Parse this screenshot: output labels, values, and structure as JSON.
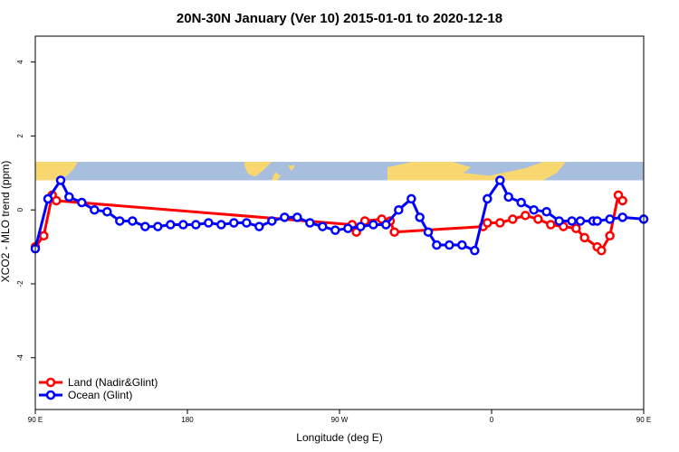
{
  "chart_data": {
    "type": "line",
    "title": "20N-30N January (Ver 10)   2015-01-01 to 2020-12-18",
    "xlabel": "Longitude (deg E)",
    "ylabel": "XCO2 - MLO trend (ppm)",
    "xlim": [
      90,
      450
    ],
    "ylim": [
      -5.4,
      4.7
    ],
    "x_ticks": [
      {
        "value": 90,
        "label": "90 E"
      },
      {
        "value": 180,
        "label": "180"
      },
      {
        "value": 270,
        "label": "90 W"
      },
      {
        "value": 360,
        "label": "0"
      },
      {
        "value": 450,
        "label": "90 E"
      },
      {
        "value": 540,
        "label": "180"
      }
    ],
    "y_ticks": [
      {
        "value": 4,
        "label": "4"
      },
      {
        "value": 2,
        "label": "2"
      },
      {
        "value": 0,
        "label": "0"
      },
      {
        "value": -2,
        "label": "-2"
      },
      {
        "value": -4,
        "label": "-4"
      }
    ],
    "map_band": {
      "y_range": [
        0.8,
        1.3
      ],
      "ocean_color": "#a8bedf",
      "land_color": "#f8d771"
    },
    "legend_position": "bottom-left",
    "series": [
      {
        "name": "Land (Nadir&Glint)",
        "color": "#ff0000",
        "points": [
          [
            90,
            -1.0
          ],
          [
            95,
            -0.7
          ],
          [
            100,
            0.4
          ],
          [
            102.5,
            0.25
          ],
          [
            277.5,
            -0.4
          ],
          [
            280,
            -0.6
          ],
          [
            285,
            -0.3
          ],
          [
            295,
            -0.25
          ],
          [
            300,
            -0.3
          ],
          [
            302.5,
            -0.6
          ],
          [
            355,
            -0.45
          ],
          [
            357.5,
            -0.35
          ],
          [
            365,
            -0.35
          ],
          [
            372.5,
            -0.25
          ],
          [
            380,
            -0.15
          ],
          [
            387.5,
            -0.25
          ],
          [
            395,
            -0.4
          ],
          [
            402.5,
            -0.45
          ],
          [
            410,
            -0.5
          ],
          [
            415,
            -0.75
          ],
          [
            422.5,
            -1.0
          ],
          [
            425,
            -1.1
          ],
          [
            430,
            -0.7
          ],
          [
            435,
            0.4
          ],
          [
            437.5,
            0.25
          ]
        ]
      },
      {
        "name": "Ocean (Glint)",
        "color": "#0000ff",
        "points": [
          [
            90,
            -1.05
          ],
          [
            97.5,
            0.3
          ],
          [
            105,
            0.8
          ],
          [
            110,
            0.35
          ],
          [
            117.5,
            0.2
          ],
          [
            125,
            0.0
          ],
          [
            132.5,
            -0.05
          ],
          [
            140,
            -0.3
          ],
          [
            147.5,
            -0.3
          ],
          [
            155,
            -0.45
          ],
          [
            162.5,
            -0.45
          ],
          [
            170,
            -0.4
          ],
          [
            177.5,
            -0.4
          ],
          [
            185,
            -0.4
          ],
          [
            192.5,
            -0.35
          ],
          [
            200,
            -0.4
          ],
          [
            207.5,
            -0.35
          ],
          [
            215,
            -0.35
          ],
          [
            222.5,
            -0.45
          ],
          [
            230,
            -0.3
          ],
          [
            237.5,
            -0.2
          ],
          [
            245,
            -0.2
          ],
          [
            252.5,
            -0.35
          ],
          [
            260,
            -0.45
          ],
          [
            267.5,
            -0.55
          ],
          [
            275,
            -0.5
          ],
          [
            282.5,
            -0.45
          ],
          [
            290,
            -0.4
          ],
          [
            297.5,
            -0.4
          ],
          [
            305,
            0.0
          ],
          [
            312.5,
            0.3
          ],
          [
            317.5,
            -0.2
          ],
          [
            322.5,
            -0.6
          ],
          [
            327.5,
            -0.95
          ],
          [
            335,
            -0.95
          ],
          [
            342.5,
            -0.95
          ],
          [
            350,
            -1.1
          ],
          [
            357.5,
            0.3
          ],
          [
            365,
            0.8
          ],
          [
            370,
            0.35
          ],
          [
            377.5,
            0.2
          ],
          [
            385,
            0.0
          ],
          [
            392.5,
            -0.05
          ],
          [
            400,
            -0.3
          ],
          [
            407.5,
            -0.3
          ],
          [
            412.5,
            -0.3
          ],
          [
            420,
            -0.3
          ],
          [
            422.5,
            -0.3
          ],
          [
            430,
            -0.25
          ],
          [
            437.5,
            -0.2
          ],
          [
            450,
            -0.25
          ]
        ]
      }
    ]
  }
}
